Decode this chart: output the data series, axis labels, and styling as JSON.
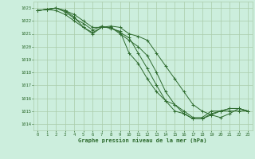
{
  "title": "Graphe pression niveau de la mer (hPa)",
  "background_color": "#cceedd",
  "grid_color": "#aaccaa",
  "line_color": "#2d6a2d",
  "xlim": [
    -0.5,
    23.5
  ],
  "ylim": [
    1013.5,
    1023.5
  ],
  "yticks": [
    1014,
    1015,
    1016,
    1017,
    1018,
    1019,
    1020,
    1021,
    1022,
    1023
  ],
  "xticks": [
    0,
    1,
    2,
    3,
    4,
    5,
    6,
    7,
    8,
    9,
    10,
    11,
    12,
    13,
    14,
    15,
    16,
    17,
    18,
    19,
    20,
    21,
    22,
    23
  ],
  "series": [
    [
      1022.8,
      1022.9,
      1022.8,
      1022.5,
      1022.0,
      1021.5,
      1021.0,
      1021.5,
      1021.5,
      1021.1,
      1020.7,
      1019.5,
      1018.3,
      1017.0,
      1015.8,
      1015.0,
      1014.8,
      1014.4,
      1014.4,
      1014.8,
      1015.0,
      1015.0,
      1015.0,
      1015.0
    ],
    [
      1022.8,
      1022.9,
      1023.0,
      1022.8,
      1022.3,
      1021.5,
      1021.1,
      1021.5,
      1021.5,
      1021.0,
      1020.5,
      1020.0,
      1019.3,
      1018.0,
      1016.5,
      1015.5,
      1014.8,
      1014.4,
      1014.4,
      1014.7,
      1015.0,
      1015.2,
      1015.2,
      1015.0
    ],
    [
      1022.8,
      1022.9,
      1023.0,
      1022.7,
      1022.2,
      1021.8,
      1021.3,
      1021.6,
      1021.4,
      1021.2,
      1019.5,
      1018.7,
      1017.5,
      1016.5,
      1015.8,
      1015.5,
      1015.0,
      1014.5,
      1014.5,
      1015.0,
      1015.0,
      1015.2,
      1015.2,
      1015.0
    ],
    [
      1022.8,
      1022.9,
      1023.0,
      1022.8,
      1022.5,
      1022.0,
      1021.5,
      1021.5,
      1021.6,
      1021.5,
      1021.0,
      1020.8,
      1020.5,
      1019.5,
      1018.5,
      1017.5,
      1016.5,
      1015.5,
      1015.0,
      1014.7,
      1014.5,
      1014.8,
      1015.2,
      1015.0
    ]
  ]
}
